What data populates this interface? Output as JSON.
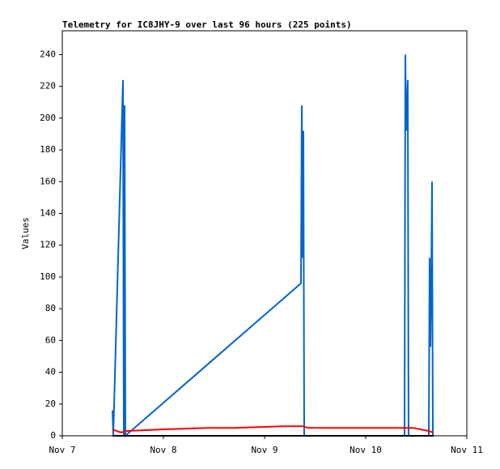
{
  "chart_data": {
    "type": "line",
    "title": "Telemetry for IC8JHY-9 over last 96 hours (225 points)",
    "y_label": "Values",
    "xlim": [
      0,
      4
    ],
    "xticks": [
      {
        "value": 0,
        "label": "Nov 7"
      },
      {
        "value": 1,
        "label": "Nov 8"
      },
      {
        "value": 2,
        "label": "Nov 9"
      },
      {
        "value": 3,
        "label": "Nov 10"
      },
      {
        "value": 4,
        "label": "Nov 11"
      }
    ],
    "ylim": [
      0,
      255
    ],
    "yticks": [
      0,
      20,
      40,
      60,
      80,
      100,
      120,
      140,
      160,
      180,
      200,
      220,
      240
    ],
    "series": [
      {
        "color": "#0066cc",
        "x": [
          0.496,
          0.504,
          0.6,
          0.608,
          0.616,
          0.624,
          2.36,
          2.368,
          2.376,
          2.384,
          2.392,
          3.384,
          3.392,
          3.4,
          3.408,
          3.416,
          3.424,
          3.624,
          3.632,
          3.64,
          3.648,
          3.656,
          3.664
        ],
        "values": [
          16,
          0,
          224,
          0,
          208,
          0,
          96,
          208,
          112,
          192,
          0,
          0,
          240,
          192,
          208,
          224,
          0,
          0,
          112,
          56,
          96,
          160,
          0
        ]
      },
      {
        "color": "#ff0000",
        "x": [
          0.496,
          0.584,
          0.624,
          0.984,
          1.464,
          1.704,
          2.184,
          2.384,
          2.424,
          3.384,
          3.464,
          3.624,
          3.672
        ],
        "values": [
          4,
          2,
          3,
          4,
          5,
          5,
          6,
          6,
          5,
          5,
          5,
          3,
          2
        ]
      },
      {
        "color": "#000000",
        "x": [
          0.496,
          3.672
        ],
        "values": [
          0,
          0
        ]
      }
    ]
  }
}
